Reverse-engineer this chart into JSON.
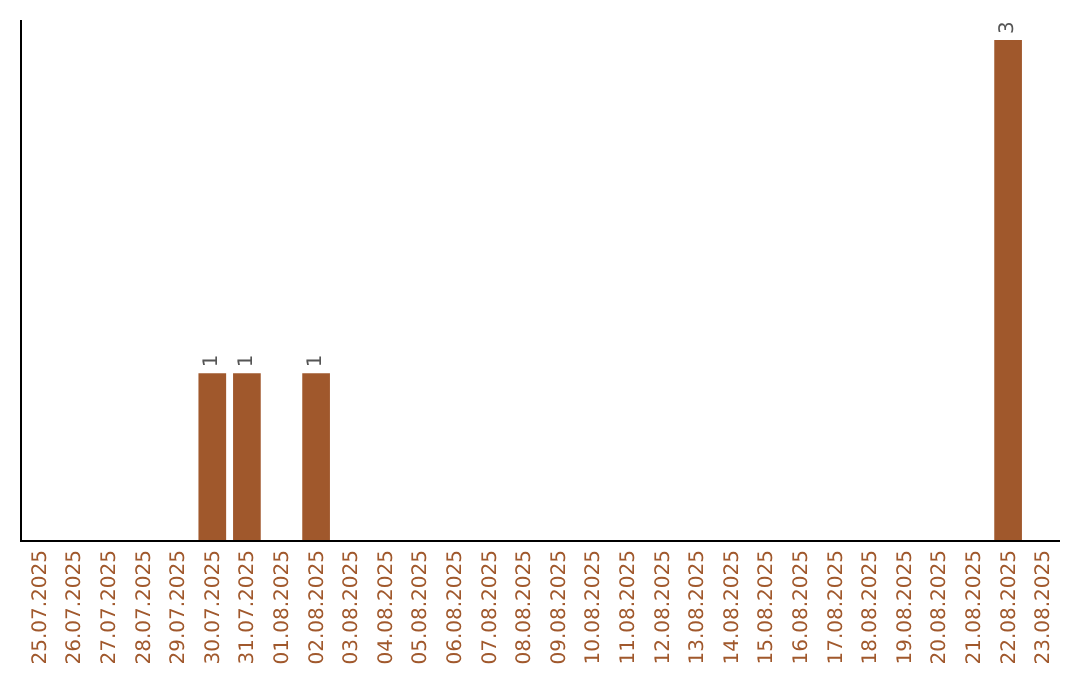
{
  "chart_data": {
    "type": "bar",
    "categories": [
      "25.07.2025",
      "26.07.2025",
      "27.07.2025",
      "28.07.2025",
      "29.07.2025",
      "30.07.2025",
      "31.07.2025",
      "01.08.2025",
      "02.08.2025",
      "03.08.2025",
      "04.08.2025",
      "05.08.2025",
      "06.08.2025",
      "07.08.2025",
      "08.08.2025",
      "09.08.2025",
      "10.08.2025",
      "11.08.2025",
      "12.08.2025",
      "13.08.2025",
      "14.08.2025",
      "15.08.2025",
      "16.08.2025",
      "17.08.2025",
      "18.08.2025",
      "19.08.2025",
      "20.08.2025",
      "21.08.2025",
      "22.08.2025",
      "23.08.2025"
    ],
    "values": [
      0,
      0,
      0,
      0,
      0,
      1,
      1,
      0,
      1,
      0,
      0,
      0,
      0,
      0,
      0,
      0,
      0,
      0,
      0,
      0,
      0,
      0,
      0,
      0,
      0,
      0,
      0,
      0,
      3,
      0
    ],
    "value_labels": [
      null,
      null,
      null,
      null,
      null,
      "1",
      "1",
      null,
      "1",
      null,
      null,
      null,
      null,
      null,
      null,
      null,
      null,
      null,
      null,
      null,
      null,
      null,
      null,
      null,
      null,
      null,
      null,
      null,
      "3",
      null
    ],
    "color": "#a0582c",
    "tick_labels": "x"
  }
}
